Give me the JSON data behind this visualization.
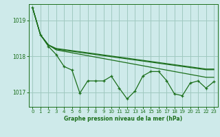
{
  "background_color": "#ceeaea",
  "line_color": "#1a6e1a",
  "grid_color": "#a0c8c0",
  "title": "Graphe pression niveau de la mer (hPa)",
  "title_color": "#1a6e1a",
  "ylim": [
    1016.6,
    1019.45
  ],
  "xlim": [
    -0.5,
    23.5
  ],
  "yticks": [
    1017,
    1018,
    1019
  ],
  "xticks": [
    0,
    1,
    2,
    3,
    4,
    5,
    6,
    7,
    8,
    9,
    10,
    11,
    12,
    13,
    14,
    15,
    16,
    17,
    18,
    19,
    20,
    21,
    22,
    23
  ],
  "series_smooth1": [
    1019.35,
    1018.6,
    1018.32,
    1018.18,
    1018.14,
    1018.1,
    1018.06,
    1018.02,
    1017.98,
    1017.94,
    1017.9,
    1017.86,
    1017.82,
    1017.78,
    1017.74,
    1017.7,
    1017.66,
    1017.62,
    1017.58,
    1017.54,
    1017.5,
    1017.46,
    1017.42,
    1017.42
  ],
  "series_smooth2": [
    1019.35,
    1018.6,
    1018.32,
    1018.2,
    1018.17,
    1018.14,
    1018.11,
    1018.08,
    1018.05,
    1018.02,
    1017.99,
    1017.96,
    1017.93,
    1017.9,
    1017.87,
    1017.84,
    1017.81,
    1017.78,
    1017.75,
    1017.72,
    1017.69,
    1017.66,
    1017.63,
    1017.63
  ],
  "series_smooth3": [
    1019.35,
    1018.6,
    1018.32,
    1018.22,
    1018.19,
    1018.16,
    1018.13,
    1018.1,
    1018.07,
    1018.04,
    1018.01,
    1017.98,
    1017.95,
    1017.92,
    1017.89,
    1017.86,
    1017.83,
    1017.8,
    1017.77,
    1017.74,
    1017.71,
    1017.68,
    1017.65,
    1017.65
  ],
  "series_jagged": [
    1019.35,
    1018.6,
    1018.28,
    1018.05,
    1017.72,
    1017.62,
    1016.98,
    1017.32,
    1017.32,
    1017.32,
    1017.45,
    1017.12,
    1016.82,
    1017.04,
    1017.46,
    1017.58,
    1017.58,
    1017.33,
    1016.96,
    1016.91,
    1017.26,
    1017.32,
    1017.12,
    1017.3
  ]
}
